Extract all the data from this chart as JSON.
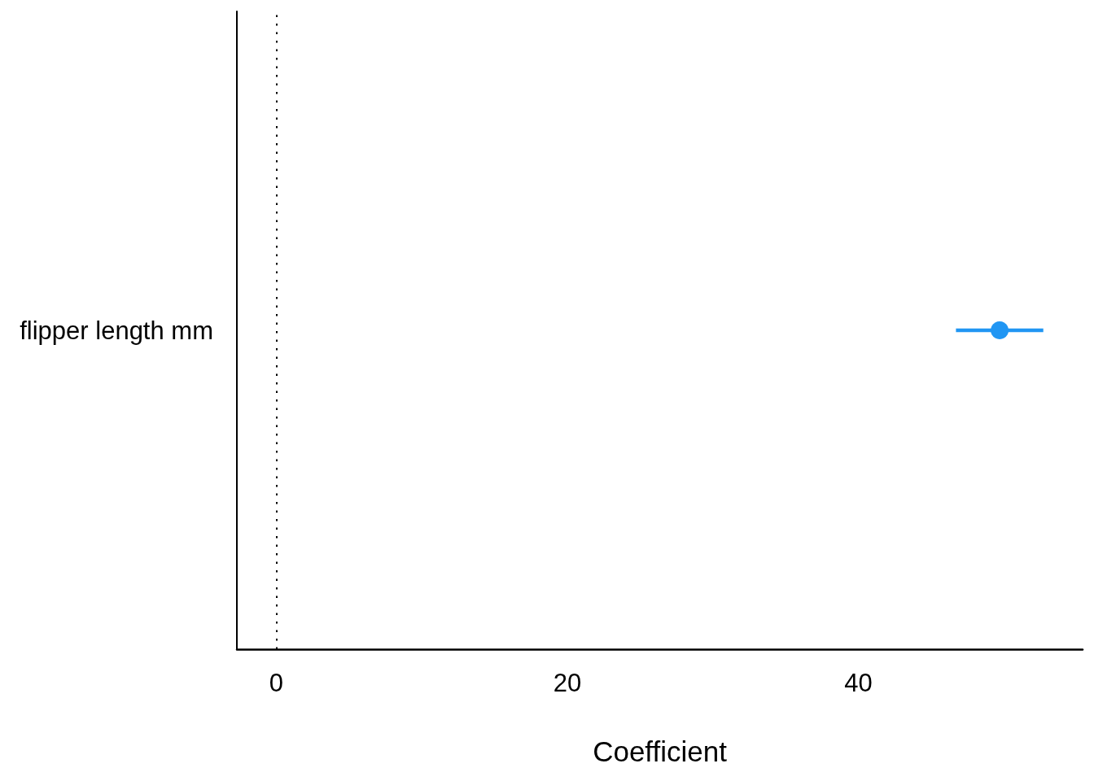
{
  "chart_data": {
    "type": "scatter",
    "orientation": "horizontal",
    "categories": [
      "flipper length mm"
    ],
    "values": [
      49.7
    ],
    "errors": [
      [
        46.7,
        52.7
      ]
    ],
    "color": "#2196f3",
    "marker": "circle",
    "xlim": [
      -2.7,
      55.4
    ],
    "xticks": [
      0,
      20,
      40
    ],
    "xlabel": "Coefficient",
    "grid": false,
    "ref_lines": [
      {
        "axis": "x",
        "value": 0,
        "color": "#000000",
        "line_style": "dotted"
      }
    ]
  }
}
